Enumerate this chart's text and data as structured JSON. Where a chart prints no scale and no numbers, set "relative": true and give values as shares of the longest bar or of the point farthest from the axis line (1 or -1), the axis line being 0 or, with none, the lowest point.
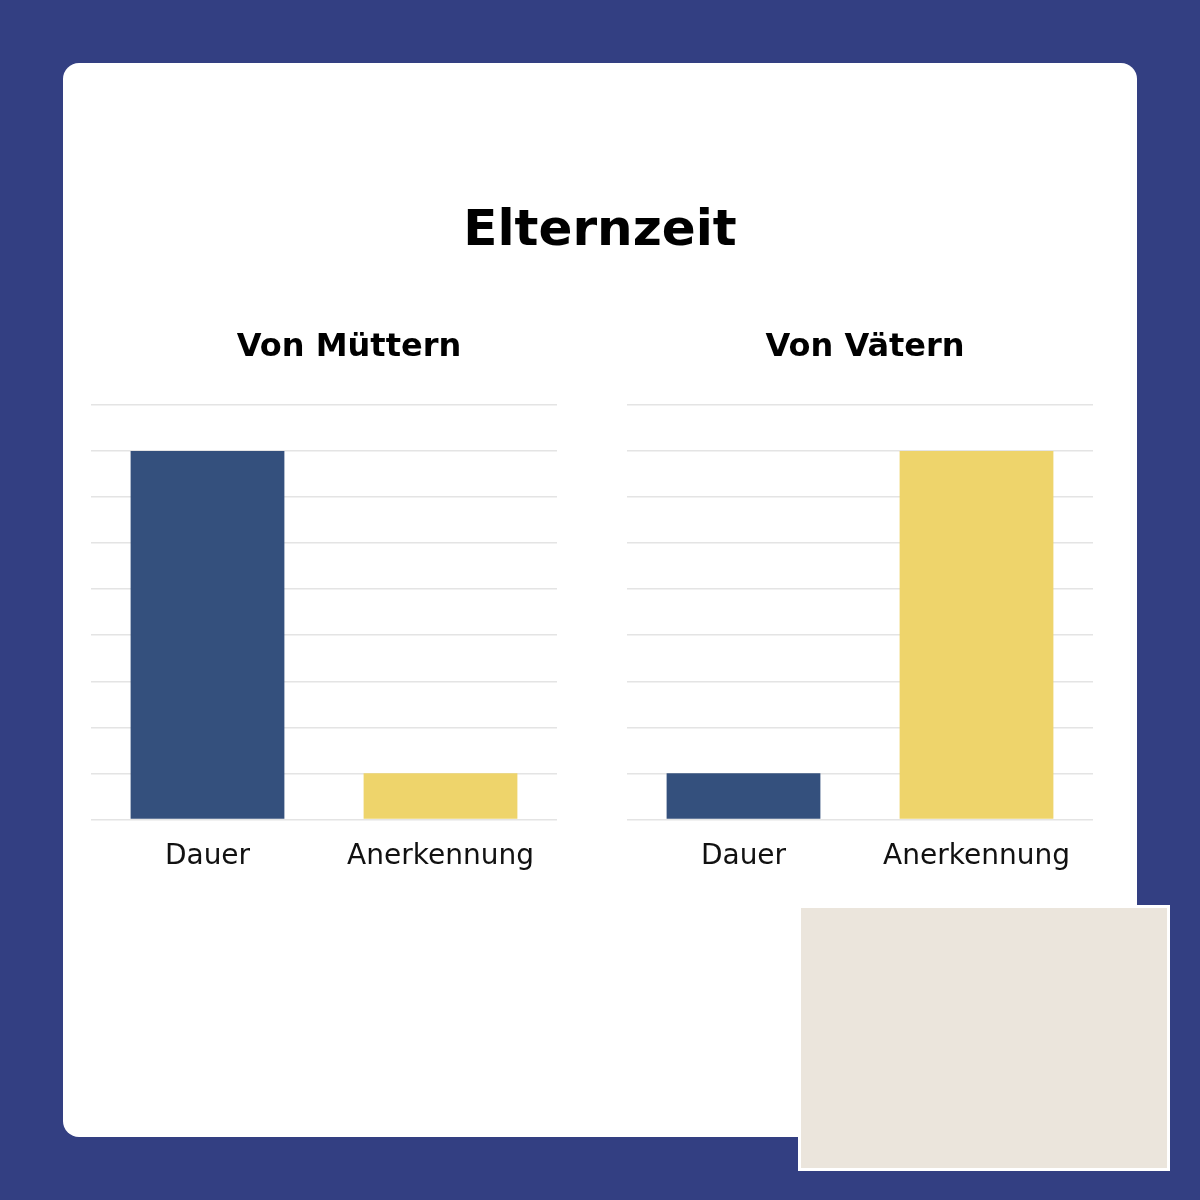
{
  "chart_data": [
    {
      "type": "bar",
      "title": "Elternzeit",
      "subtitle": "Von Müttern",
      "categories": [
        "Dauer",
        "Anerkennung"
      ],
      "values": [
        1,
        0.125
      ],
      "colors": [
        "#34507d",
        "#eed46b"
      ],
      "relative": true,
      "grid": "y",
      "tick_labels": "x"
    },
    {
      "type": "bar",
      "subtitle": "Von Vätern",
      "categories": [
        "Dauer",
        "Anerkennung"
      ],
      "values": [
        0.125,
        1
      ],
      "colors": [
        "#34507d",
        "#eed46b"
      ],
      "relative": true,
      "grid": "y",
      "tick_labels": "x"
    }
  ]
}
